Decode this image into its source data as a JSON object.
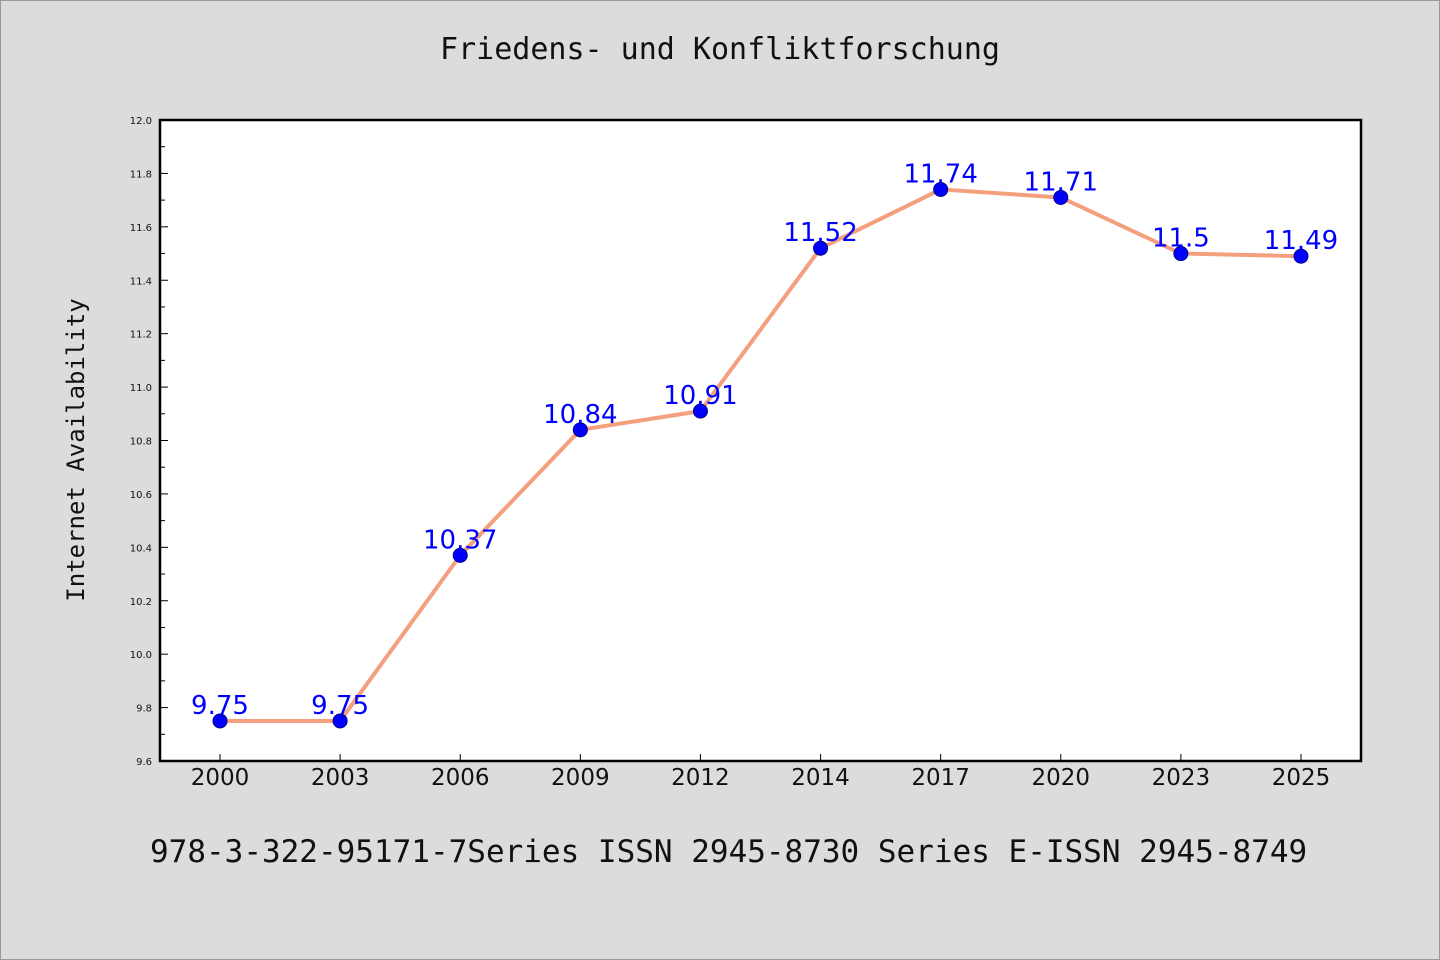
{
  "chart_data": {
    "type": "line",
    "title": "Friedens- und Konfliktforschung",
    "xlabel": "",
    "ylabel": "Internet Availability",
    "categories": [
      "2000",
      "2003",
      "2006",
      "2009",
      "2012",
      "2014",
      "2017",
      "2020",
      "2023",
      "2025"
    ],
    "series": [
      {
        "values": [
          9.75,
          9.75,
          10.37,
          10.84,
          10.91,
          11.52,
          11.74,
          11.71,
          11.5,
          11.49
        ],
        "labels": [
          "9.75",
          "9.75",
          "10.37",
          "10.84",
          "10.91",
          "11.52",
          "11.74",
          "11.71",
          "11.5",
          "11.49"
        ],
        "line_color": "#f4a07e",
        "marker_color": "#0000ff"
      }
    ],
    "ylim": [
      9.6,
      12.0
    ],
    "yticks": [
      "9.6",
      "9.8",
      "10.0",
      "10.2",
      "10.4",
      "10.6",
      "10.8",
      "11.0",
      "11.2",
      "11.4",
      "11.6",
      "11.8",
      "12.0"
    ],
    "grid": false,
    "legend": "none"
  },
  "footer": "978-3-322-95171-7Series ISSN 2945-8730 Series E-ISSN 2945-8749",
  "colors": {
    "background": "#dcdcdc",
    "plot_background": "#ffffff",
    "line": "#f4a07e",
    "marker": "#0000ff",
    "data_label": "#0000ff"
  }
}
